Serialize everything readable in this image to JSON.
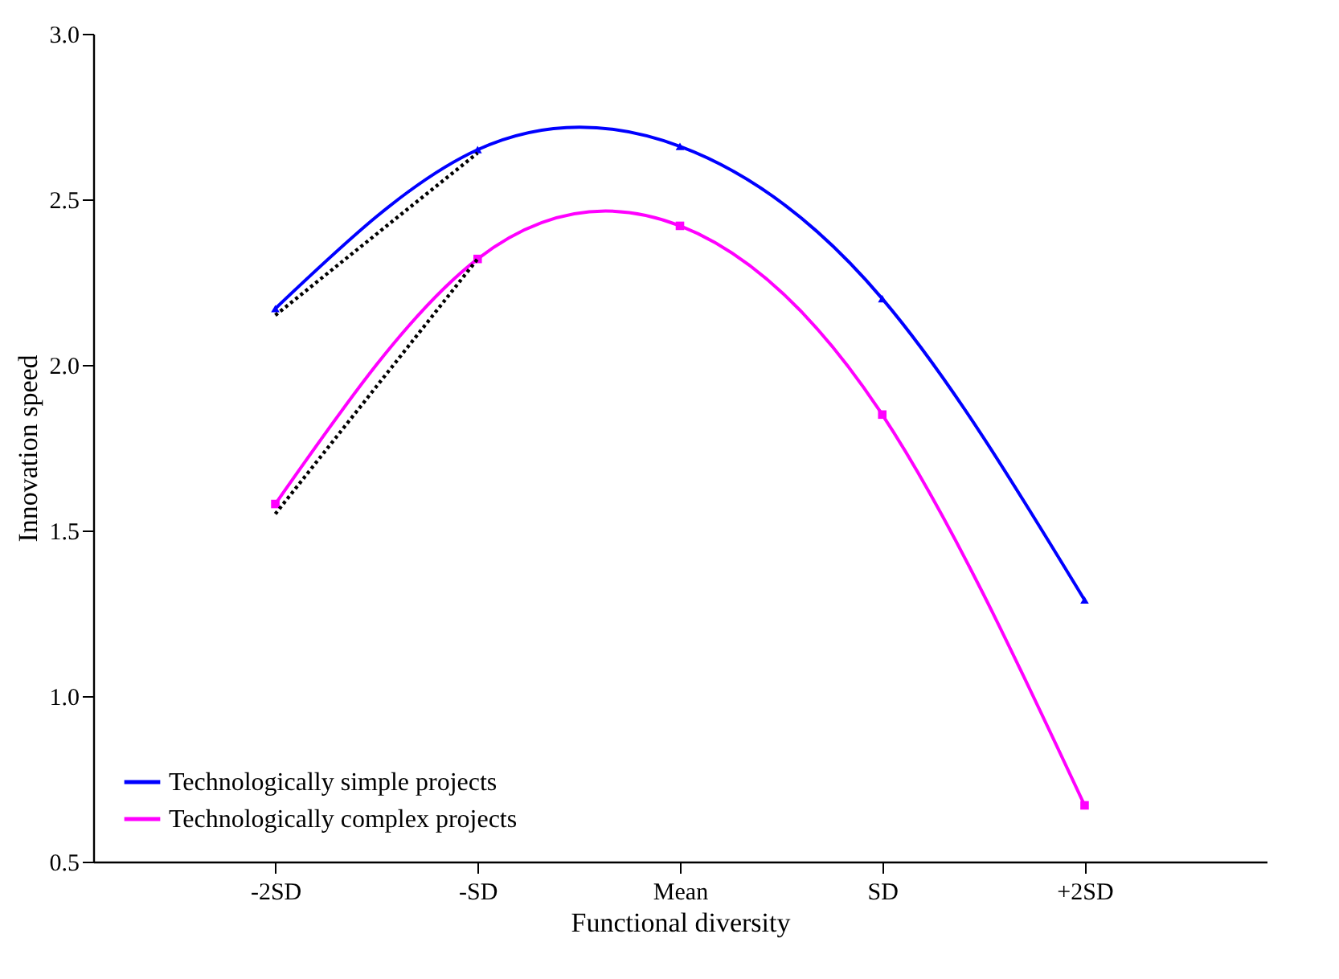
{
  "chart_data": {
    "type": "line",
    "xlabel": "Functional diversity",
    "ylabel": "Innovation speed",
    "categories": [
      "-2SD",
      "-SD",
      "Mean",
      "SD",
      "+2SD"
    ],
    "series": [
      {
        "name": "Technologically simple projects",
        "color": "#0000ff",
        "line_style": "solid",
        "marker": "triangle",
        "values": [
          2.17,
          2.65,
          2.66,
          2.2,
          1.29
        ]
      },
      {
        "name": "Technologically complex projects",
        "color": "#ff00ff",
        "line_style": "solid",
        "marker": "square",
        "values": [
          1.58,
          2.32,
          2.42,
          1.85,
          0.67
        ]
      },
      {
        "color": "#000000",
        "line_style": "dotted",
        "marker": "none",
        "values": [
          2.15,
          2.64,
          null,
          null,
          null
        ]
      },
      {
        "color": "#000000",
        "line_style": "dotted",
        "marker": "none",
        "values": [
          1.55,
          2.32,
          null,
          null,
          null
        ]
      }
    ],
    "ylim": [
      0.5,
      3.0
    ],
    "yticks": [
      0.5,
      {
        "value": 1,
        "label": "1.0"
      },
      1.5,
      {
        "value": 2,
        "label": "2.0"
      },
      2.5,
      {
        "value": 3,
        "label": "3.0"
      }
    ],
    "grid": false,
    "legend": "bottom left"
  }
}
